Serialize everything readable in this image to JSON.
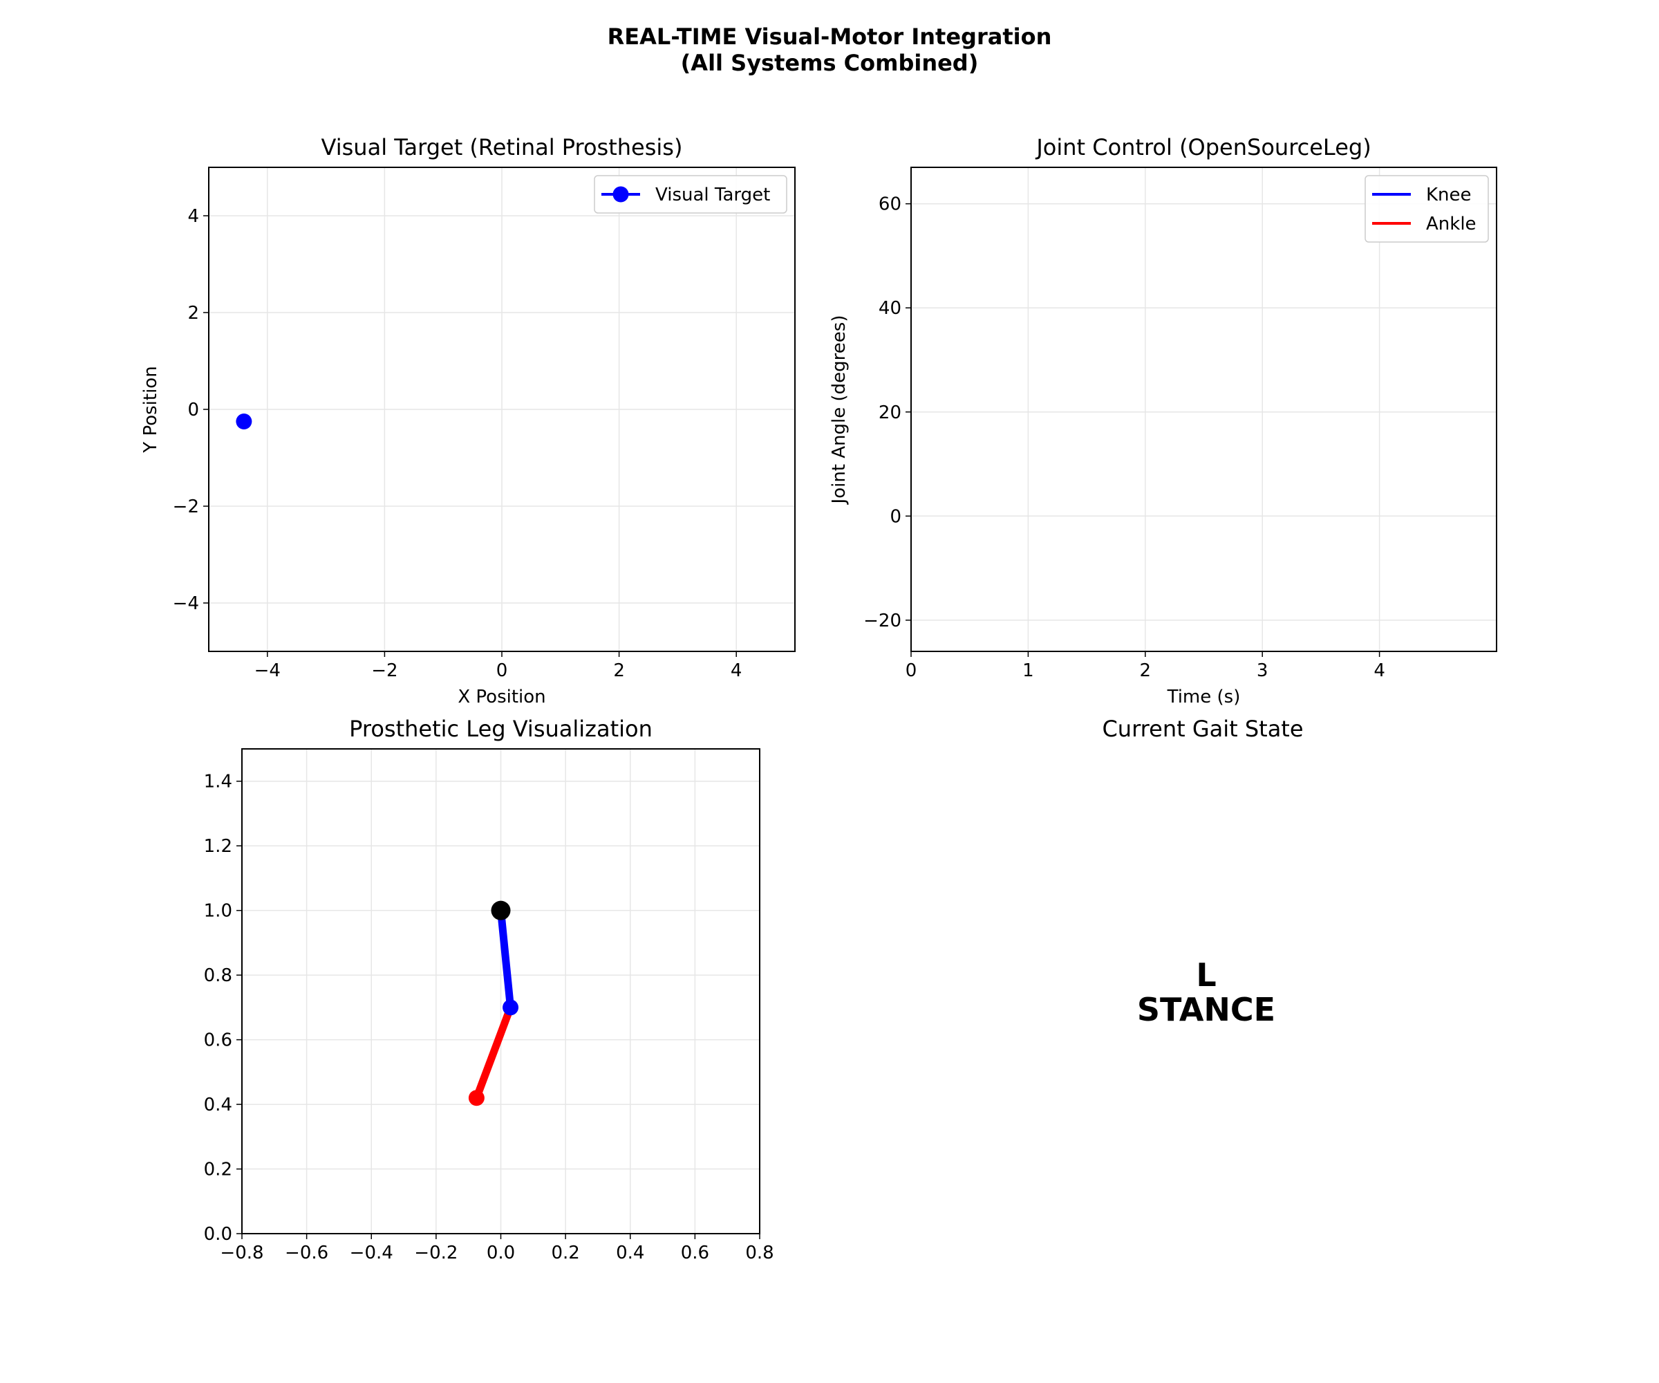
{
  "figure": {
    "title_line1": "REAL-TIME Visual-Motor Integration",
    "title_line2": "(All Systems Combined)"
  },
  "chart_data": [
    {
      "id": "visual",
      "type": "scatter",
      "title": "Visual Target (Retinal Prosthesis)",
      "xlabel": "X Position",
      "ylabel": "Y Position",
      "xlim": [
        -5,
        5
      ],
      "ylim": [
        -5,
        5
      ],
      "xticks": [
        -4,
        -2,
        0,
        2,
        4
      ],
      "yticks": [
        -4,
        -2,
        0,
        2,
        4
      ],
      "grid": true,
      "legend": "upper right",
      "series": [
        {
          "name": "Visual Target",
          "color": "#0000ff",
          "x": [
            -4.4
          ],
          "y": [
            -0.25
          ]
        }
      ]
    },
    {
      "id": "joint",
      "type": "line",
      "title": "Joint Control (OpenSourceLeg)",
      "xlabel": "Time (s)",
      "ylabel": "Joint Angle (degrees)",
      "xlim": [
        0,
        5
      ],
      "ylim": [
        -26,
        67
      ],
      "xticks": [
        0,
        1,
        2,
        3,
        4
      ],
      "yticks": [
        -20,
        0,
        20,
        40,
        60
      ],
      "grid": true,
      "legend": "upper right",
      "series": [
        {
          "name": "Knee",
          "color": "#0000ff",
          "x": [],
          "y": []
        },
        {
          "name": "Ankle",
          "color": "#ff0000",
          "x": [],
          "y": []
        }
      ]
    },
    {
      "id": "leg",
      "type": "line",
      "title": "Prosthetic Leg Visualization",
      "xlim": [
        -0.8,
        0.8
      ],
      "ylim": [
        0,
        1.5
      ],
      "xticks": [
        -0.8,
        -0.6,
        -0.4,
        -0.2,
        0.0,
        0.2,
        0.4,
        0.6,
        0.8
      ],
      "yticks": [
        0.0,
        0.2,
        0.4,
        0.6,
        0.8,
        1.0,
        1.2,
        1.4
      ],
      "grid": true,
      "segments": [
        {
          "name": "thigh",
          "color": "#0000ff",
          "x": [
            0.0,
            0.03
          ],
          "y": [
            1.0,
            0.7
          ]
        },
        {
          "name": "shank",
          "color": "#ff0000",
          "x": [
            0.03,
            -0.075
          ],
          "y": [
            0.7,
            0.42
          ]
        }
      ],
      "joints": [
        {
          "name": "hip",
          "color": "#000000",
          "x": 0.0,
          "y": 1.0
        },
        {
          "name": "knee",
          "color": "#0000ff",
          "x": 0.03,
          "y": 0.7
        },
        {
          "name": "ankle",
          "color": "#ff0000",
          "x": -0.075,
          "y": 0.42
        }
      ]
    }
  ],
  "gait": {
    "title": "Current Gait State",
    "line1": "L",
    "line2": "STANCE"
  }
}
